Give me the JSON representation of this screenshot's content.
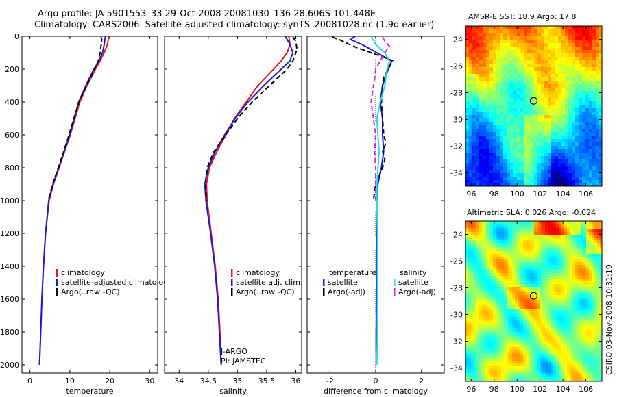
{
  "header": {
    "line1": "Argo profile: JA 5901553_33 29-Oct-2008 20081030_136 28.606S 101.448E",
    "line2": "Climatology: CARS2006. Satellite-adjusted climatology: synTS_20081028.nc (1.9d earlier)"
  },
  "colors": {
    "climatology": "#e8141e",
    "satellite": "#1a1adc",
    "argo": "#000000",
    "sal_satellite": "#22e0e8",
    "sal_argo": "#e020e0"
  },
  "chart_data": [
    {
      "type": "line",
      "id": "temperature",
      "xlabel": "temperature",
      "ylabel": "",
      "xlim": [
        -2,
        32
      ],
      "ylim": [
        2050,
        0
      ],
      "x_ticks": [
        0,
        10,
        20,
        30
      ],
      "y_ticks": [
        0,
        200,
        400,
        600,
        800,
        1000,
        1200,
        1400,
        1600,
        1800,
        2000
      ],
      "legend": {
        "position": "lower-right",
        "entries": [
          "climatology",
          "satellite-adjusted climatology",
          "Argo(..raw -QC)"
        ]
      },
      "series": [
        {
          "name": "climatology",
          "color": "#e8141e",
          "style": "solid",
          "depth": [
            0,
            50,
            100,
            150,
            200,
            300,
            400,
            500,
            600,
            700,
            800,
            900,
            1000,
            1200,
            1400,
            1600,
            1800,
            2000
          ],
          "values": [
            19.8,
            19.4,
            18.6,
            17.6,
            16.4,
            14.3,
            12.5,
            11.3,
            10.1,
            8.7,
            7.3,
            5.9,
            4.8,
            3.9,
            3.4,
            3.0,
            2.7,
            2.4
          ]
        },
        {
          "name": "satellite",
          "color": "#1a1adc",
          "style": "solid",
          "depth": [
            0,
            50,
            100,
            150,
            200,
            300,
            400,
            500,
            600,
            700,
            800,
            900,
            1000,
            1200,
            1400,
            1600,
            1800,
            2000
          ],
          "values": [
            18.9,
            18.6,
            18.2,
            17.3,
            16.0,
            14.0,
            12.2,
            11.1,
            10.0,
            8.6,
            7.2,
            5.8,
            4.7,
            3.9,
            3.4,
            3.0,
            2.7,
            2.4
          ]
        },
        {
          "name": "Argo",
          "color": "#000000",
          "style": "dashed",
          "depth": [
            5,
            20,
            60,
            100,
            150,
            200,
            300,
            400,
            500,
            600,
            700,
            800,
            900,
            1000
          ],
          "values": [
            17.8,
            18.0,
            17.8,
            17.6,
            17.1,
            16.2,
            14.2,
            12.3,
            11.0,
            9.8,
            8.5,
            7.1,
            5.7,
            4.6
          ]
        }
      ]
    },
    {
      "type": "line",
      "id": "salinity",
      "xlabel": "salinity",
      "ylabel": "",
      "xlim": [
        33.75,
        36.1
      ],
      "ylim": [
        2050,
        0
      ],
      "x_ticks": [
        34,
        34.5,
        35,
        35.5,
        36
      ],
      "legend": {
        "position": "lower-right",
        "entries": [
          "climatology",
          "satellite adj. clim.",
          "Argo(..raw -QC)"
        ]
      },
      "annotations": [
        "J-ARGO",
        "PI: JAMSTEC"
      ],
      "series": [
        {
          "name": "climatology",
          "color": "#e8141e",
          "style": "solid",
          "depth": [
            0,
            50,
            100,
            150,
            200,
            300,
            400,
            500,
            600,
            700,
            800,
            900,
            1000,
            1200,
            1400,
            1600,
            1800,
            2000
          ],
          "values": [
            35.88,
            35.9,
            35.85,
            35.75,
            35.62,
            35.35,
            35.15,
            34.95,
            34.8,
            34.65,
            34.52,
            34.47,
            34.48,
            34.55,
            34.62,
            34.67,
            34.7,
            34.72
          ]
        },
        {
          "name": "satellite",
          "color": "#1a1adc",
          "style": "solid",
          "depth": [
            0,
            50,
            100,
            150,
            200,
            300,
            400,
            500,
            600,
            700,
            800,
            900,
            1000,
            1200,
            1400,
            1600,
            1800,
            2000
          ],
          "values": [
            35.82,
            35.9,
            35.95,
            35.9,
            35.75,
            35.45,
            35.18,
            34.96,
            34.78,
            34.62,
            34.5,
            34.44,
            34.46,
            34.54,
            34.61,
            34.66,
            34.69,
            34.72
          ]
        },
        {
          "name": "Argo",
          "color": "#000000",
          "style": "dashed",
          "depth": [
            5,
            30,
            80,
            150,
            200,
            300,
            400,
            500,
            600,
            700,
            800,
            900,
            1000
          ],
          "values": [
            35.95,
            36.0,
            36.02,
            35.95,
            35.85,
            35.55,
            35.25,
            35.0,
            34.8,
            34.6,
            34.48,
            34.45,
            34.47
          ]
        }
      ]
    },
    {
      "type": "line",
      "id": "difference",
      "xlabel": "difference from climatology",
      "ylabel": "",
      "xlim": [
        -3,
        3
      ],
      "ylim": [
        2050,
        0
      ],
      "x_ticks": [
        -2,
        0,
        2
      ],
      "legend": {
        "position": "lower",
        "entries": [
          "temperature",
          "satellite",
          "Argo(-adj)",
          "salinity",
          "satellite",
          "Argo(-adj)"
        ]
      },
      "series": [
        {
          "name": "temperature satellite",
          "color": "#1a1adc",
          "style": "solid",
          "depth": [
            0,
            20,
            50,
            80,
            120,
            150,
            200,
            300,
            400,
            500,
            600,
            700,
            800,
            900,
            1000,
            1200,
            1400,
            1600,
            1800,
            2000
          ],
          "values": [
            -0.9,
            -1.1,
            -0.6,
            -0.2,
            0.3,
            0.7,
            0.55,
            0.3,
            0.2,
            0.3,
            0.3,
            0.35,
            0.25,
            0.1,
            0.05,
            0.05,
            0.03,
            0.03,
            0.02,
            0.02
          ]
        },
        {
          "name": "temperature Argo(-adj)",
          "color": "#000000",
          "style": "dashed",
          "depth": [
            5,
            20,
            40,
            60,
            80,
            100,
            130,
            150,
            200,
            250,
            300,
            400,
            500,
            600,
            650,
            700,
            750,
            800,
            900,
            1000
          ],
          "values": [
            -1.9,
            -1.6,
            -1.3,
            -1.0,
            -0.6,
            -0.2,
            0.4,
            0.75,
            0.55,
            0.35,
            0.3,
            0.25,
            0.3,
            0.35,
            0.45,
            0.3,
            0.4,
            0.3,
            0.0,
            -0.1
          ]
        },
        {
          "name": "salinity satellite",
          "color": "#22e0e8",
          "style": "solid",
          "depth": [
            0,
            50,
            100,
            150,
            200,
            300,
            400,
            500,
            600,
            700,
            800,
            900,
            1000,
            1200,
            1400,
            1600,
            1800,
            2000
          ],
          "values": [
            -0.2,
            0.0,
            0.4,
            0.6,
            0.5,
            0.4,
            0.2,
            0.05,
            0.1,
            0.15,
            0.1,
            0.05,
            0.05,
            0.08,
            0.08,
            0.08,
            0.08,
            0.05
          ]
        },
        {
          "name": "salinity Argo(-adj)",
          "color": "#e020e0",
          "style": "dashed",
          "depth": [
            5,
            30,
            60,
            100,
            150,
            200,
            300,
            400,
            500,
            600,
            700,
            800,
            900,
            1000
          ],
          "values": [
            0.3,
            0.4,
            0.6,
            0.4,
            0.2,
            0.0,
            -0.1,
            -0.2,
            -0.1,
            0.0,
            -0.05,
            0.0,
            0.0,
            0.0
          ]
        }
      ]
    },
    {
      "type": "heatmap",
      "id": "sst-map",
      "title": "AMSR-E SST: 18.9 Argo: 17.8",
      "x_ticks": [
        96,
        98,
        100,
        102,
        104,
        106
      ],
      "y_ticks": [
        -24,
        -26,
        -28,
        -30,
        -32,
        -34
      ],
      "xlim": [
        95.5,
        107.4
      ],
      "ylim": [
        -35,
        -23
      ],
      "marker": {
        "lon": 101.45,
        "lat": -28.6
      }
    },
    {
      "type": "heatmap",
      "id": "sla-map",
      "title": "Altimetric SLA: 0.026 Argo: -0.024",
      "x_ticks": [
        96,
        98,
        100,
        102,
        104,
        106
      ],
      "y_ticks": [
        -24,
        -26,
        -28,
        -30,
        -32,
        -34
      ],
      "xlim": [
        95.5,
        107.4
      ],
      "ylim": [
        -35,
        -23
      ],
      "marker": {
        "lon": 101.45,
        "lat": -28.6
      }
    }
  ],
  "footer": {
    "stamp": "CSIRO 03-Nov-2008 10:31:19"
  }
}
